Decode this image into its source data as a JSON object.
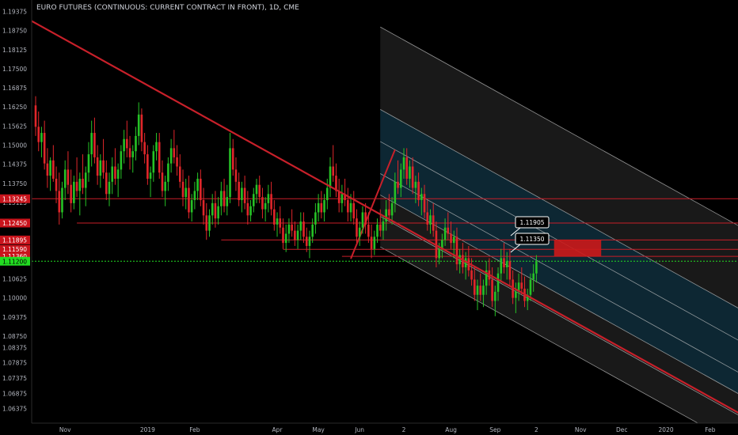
{
  "title": "EURO FUTURES (CONTINUOUS: CURRENT CONTRACT IN FRONT), 1D, CME",
  "colors": {
    "background": "#000000",
    "axis_text": "#b2b5be",
    "up_candle": "#26c226",
    "down_candle": "#e0262a",
    "trendline": "#c8202a",
    "level_line": "#c81e28",
    "channel_line": "#c8c8c8",
    "channel_fill": "#1c1c1c",
    "channel_inner": "#0a2a3a",
    "current_price": "#22dd22",
    "zone": "#cc1a1a"
  },
  "chart_data": {
    "type": "candlestick",
    "ylim": [
      1.059,
      1.1975
    ],
    "y_ticks": [
      "1.19375",
      "1.18750",
      "1.18125",
      "1.17500",
      "1.16875",
      "1.16250",
      "1.15625",
      "1.15000",
      "1.14375",
      "1.13750",
      "1.13125",
      "1.12500",
      "1.11875",
      "1.11250",
      "1.10625",
      "1.10000",
      "1.09375",
      "1.08750",
      "1.08375",
      "1.07875",
      "1.07375",
      "1.06875",
      "1.06375"
    ],
    "y_tick_values": [
      1.19375,
      1.1875,
      1.18125,
      1.175,
      1.16875,
      1.1625,
      1.15625,
      1.15,
      1.14375,
      1.1375,
      1.13125,
      1.125,
      1.11875,
      1.1125,
      1.10625,
      1.1,
      1.09375,
      1.0875,
      1.08375,
      1.07875,
      1.07375,
      1.06875,
      1.06375
    ],
    "x_ticks": [
      {
        "label": "Nov",
        "bar": 10
      },
      {
        "label": "2019",
        "bar": 38
      },
      {
        "label": "Feb",
        "bar": 54
      },
      {
        "label": "Apr",
        "bar": 82
      },
      {
        "label": "May",
        "bar": 96
      },
      {
        "label": "Jun",
        "bar": 110
      },
      {
        "label": "2",
        "bar": 125
      },
      {
        "label": "Aug",
        "bar": 141
      },
      {
        "label": "Sep",
        "bar": 156
      },
      {
        "label": "2",
        "bar": 170
      },
      {
        "label": "Nov",
        "bar": 185
      },
      {
        "label": "Dec",
        "bar": 199
      },
      {
        "label": "2020",
        "bar": 214
      },
      {
        "label": "Feb",
        "bar": 229
      }
    ],
    "candles": [
      [
        1.163,
        1.166,
        1.153,
        1.156
      ],
      [
        1.156,
        1.161,
        1.148,
        1.151
      ],
      [
        1.151,
        1.156,
        1.146,
        1.154
      ],
      [
        1.154,
        1.158,
        1.142,
        1.144
      ],
      [
        1.144,
        1.149,
        1.136,
        1.14
      ],
      [
        1.14,
        1.146,
        1.135,
        1.145
      ],
      [
        1.145,
        1.15,
        1.138,
        1.139
      ],
      [
        1.139,
        1.143,
        1.131,
        1.135
      ],
      [
        1.135,
        1.141,
        1.124,
        1.128
      ],
      [
        1.128,
        1.138,
        1.126,
        1.136
      ],
      [
        1.136,
        1.145,
        1.132,
        1.142
      ],
      [
        1.142,
        1.148,
        1.134,
        1.137
      ],
      [
        1.137,
        1.142,
        1.128,
        1.131
      ],
      [
        1.131,
        1.14,
        1.129,
        1.138
      ],
      [
        1.138,
        1.146,
        1.133,
        1.135
      ],
      [
        1.135,
        1.141,
        1.127,
        1.139
      ],
      [
        1.139,
        1.147,
        1.134,
        1.136
      ],
      [
        1.136,
        1.143,
        1.13,
        1.141
      ],
      [
        1.141,
        1.151,
        1.138,
        1.147
      ],
      [
        1.147,
        1.158,
        1.143,
        1.154
      ],
      [
        1.154,
        1.159,
        1.144,
        1.146
      ],
      [
        1.146,
        1.15,
        1.137,
        1.14
      ],
      [
        1.14,
        1.147,
        1.136,
        1.145
      ],
      [
        1.145,
        1.152,
        1.139,
        1.141
      ],
      [
        1.141,
        1.145,
        1.132,
        1.134
      ],
      [
        1.134,
        1.141,
        1.13,
        1.138
      ],
      [
        1.138,
        1.146,
        1.134,
        1.143
      ],
      [
        1.143,
        1.149,
        1.137,
        1.139
      ],
      [
        1.139,
        1.144,
        1.133,
        1.142
      ],
      [
        1.142,
        1.15,
        1.139,
        1.148
      ],
      [
        1.148,
        1.155,
        1.144,
        1.152
      ],
      [
        1.152,
        1.158,
        1.146,
        1.149
      ],
      [
        1.149,
        1.153,
        1.142,
        1.146
      ],
      [
        1.146,
        1.15,
        1.141,
        1.148
      ],
      [
        1.148,
        1.156,
        1.145,
        1.153
      ],
      [
        1.153,
        1.164,
        1.15,
        1.16
      ],
      [
        1.16,
        1.162,
        1.148,
        1.151
      ],
      [
        1.151,
        1.154,
        1.144,
        1.147
      ],
      [
        1.147,
        1.15,
        1.137,
        1.139
      ],
      [
        1.139,
        1.143,
        1.133,
        1.141
      ],
      [
        1.141,
        1.15,
        1.138,
        1.148
      ],
      [
        1.148,
        1.154,
        1.145,
        1.151
      ],
      [
        1.151,
        1.154,
        1.139,
        1.141
      ],
      [
        1.141,
        1.145,
        1.133,
        1.135
      ],
      [
        1.135,
        1.14,
        1.13,
        1.138
      ],
      [
        1.138,
        1.146,
        1.135,
        1.144
      ],
      [
        1.144,
        1.152,
        1.141,
        1.149
      ],
      [
        1.149,
        1.155,
        1.144,
        1.146
      ],
      [
        1.146,
        1.15,
        1.14,
        1.143
      ],
      [
        1.143,
        1.147,
        1.136,
        1.138
      ],
      [
        1.138,
        1.142,
        1.13,
        1.133
      ],
      [
        1.133,
        1.139,
        1.129,
        1.136
      ],
      [
        1.136,
        1.14,
        1.126,
        1.128
      ],
      [
        1.128,
        1.134,
        1.125,
        1.132
      ],
      [
        1.132,
        1.138,
        1.129,
        1.135
      ],
      [
        1.135,
        1.141,
        1.132,
        1.139
      ],
      [
        1.139,
        1.142,
        1.13,
        1.132
      ],
      [
        1.132,
        1.136,
        1.124,
        1.127
      ],
      [
        1.127,
        1.131,
        1.119,
        1.122
      ],
      [
        1.122,
        1.129,
        1.12,
        1.127
      ],
      [
        1.127,
        1.134,
        1.124,
        1.131
      ],
      [
        1.131,
        1.135,
        1.123,
        1.126
      ],
      [
        1.126,
        1.133,
        1.124,
        1.13
      ],
      [
        1.13,
        1.138,
        1.127,
        1.135
      ],
      [
        1.135,
        1.139,
        1.128,
        1.13
      ],
      [
        1.13,
        1.137,
        1.127,
        1.133
      ],
      [
        1.133,
        1.154,
        1.131,
        1.149
      ],
      [
        1.149,
        1.152,
        1.14,
        1.142
      ],
      [
        1.142,
        1.146,
        1.135,
        1.138
      ],
      [
        1.138,
        1.141,
        1.13,
        1.132
      ],
      [
        1.132,
        1.138,
        1.128,
        1.136
      ],
      [
        1.136,
        1.14,
        1.129,
        1.131
      ],
      [
        1.131,
        1.135,
        1.124,
        1.127
      ],
      [
        1.127,
        1.132,
        1.125,
        1.13
      ],
      [
        1.13,
        1.136,
        1.128,
        1.134
      ],
      [
        1.134,
        1.139,
        1.131,
        1.137
      ],
      [
        1.137,
        1.14,
        1.131,
        1.133
      ],
      [
        1.133,
        1.136,
        1.126,
        1.129
      ],
      [
        1.129,
        1.133,
        1.125,
        1.131
      ],
      [
        1.131,
        1.137,
        1.128,
        1.134
      ],
      [
        1.134,
        1.138,
        1.127,
        1.129
      ],
      [
        1.129,
        1.132,
        1.122,
        1.124
      ],
      [
        1.124,
        1.128,
        1.12,
        1.126
      ],
      [
        1.126,
        1.13,
        1.121,
        1.123
      ],
      [
        1.123,
        1.126,
        1.116,
        1.118
      ],
      [
        1.118,
        1.124,
        1.115,
        1.121
      ],
      [
        1.121,
        1.126,
        1.118,
        1.124
      ],
      [
        1.124,
        1.129,
        1.12,
        1.122
      ],
      [
        1.122,
        1.125,
        1.117,
        1.119
      ],
      [
        1.119,
        1.124,
        1.116,
        1.122
      ],
      [
        1.122,
        1.128,
        1.119,
        1.125
      ],
      [
        1.125,
        1.128,
        1.118,
        1.12
      ],
      [
        1.12,
        1.123,
        1.115,
        1.117
      ],
      [
        1.117,
        1.122,
        1.113,
        1.12
      ],
      [
        1.12,
        1.126,
        1.118,
        1.124
      ],
      [
        1.124,
        1.131,
        1.121,
        1.128
      ],
      [
        1.128,
        1.134,
        1.125,
        1.131
      ],
      [
        1.131,
        1.135,
        1.126,
        1.128
      ],
      [
        1.128,
        1.134,
        1.125,
        1.132
      ],
      [
        1.132,
        1.139,
        1.129,
        1.136
      ],
      [
        1.136,
        1.146,
        1.133,
        1.143
      ],
      [
        1.143,
        1.15,
        1.138,
        1.14
      ],
      [
        1.14,
        1.144,
        1.133,
        1.135
      ],
      [
        1.135,
        1.139,
        1.128,
        1.131
      ],
      [
        1.131,
        1.137,
        1.128,
        1.134
      ],
      [
        1.134,
        1.139,
        1.13,
        1.132
      ],
      [
        1.132,
        1.136,
        1.125,
        1.128
      ],
      [
        1.128,
        1.134,
        1.125,
        1.131
      ],
      [
        1.131,
        1.135,
        1.124,
        1.126
      ],
      [
        1.126,
        1.129,
        1.118,
        1.12
      ],
      [
        1.12,
        1.125,
        1.117,
        1.123
      ],
      [
        1.123,
        1.13,
        1.121,
        1.128
      ],
      [
        1.128,
        1.131,
        1.121,
        1.124
      ],
      [
        1.124,
        1.128,
        1.118,
        1.12
      ],
      [
        1.12,
        1.124,
        1.113,
        1.116
      ],
      [
        1.116,
        1.122,
        1.114,
        1.12
      ],
      [
        1.12,
        1.126,
        1.118,
        1.124
      ],
      [
        1.124,
        1.129,
        1.12,
        1.122
      ],
      [
        1.122,
        1.127,
        1.119,
        1.125
      ],
      [
        1.125,
        1.132,
        1.122,
        1.129
      ],
      [
        1.129,
        1.134,
        1.125,
        1.127
      ],
      [
        1.127,
        1.133,
        1.124,
        1.131
      ],
      [
        1.131,
        1.141,
        1.128,
        1.138
      ],
      [
        1.138,
        1.145,
        1.134,
        1.136
      ],
      [
        1.136,
        1.144,
        1.133,
        1.142
      ],
      [
        1.142,
        1.149,
        1.139,
        1.146
      ],
      [
        1.146,
        1.149,
        1.137,
        1.139
      ],
      [
        1.139,
        1.145,
        1.136,
        1.143
      ],
      [
        1.143,
        1.146,
        1.134,
        1.136
      ],
      [
        1.136,
        1.14,
        1.131,
        1.138
      ],
      [
        1.138,
        1.141,
        1.13,
        1.132
      ],
      [
        1.132,
        1.136,
        1.127,
        1.134
      ],
      [
        1.134,
        1.137,
        1.126,
        1.128
      ],
      [
        1.128,
        1.132,
        1.122,
        1.124
      ],
      [
        1.124,
        1.129,
        1.121,
        1.127
      ],
      [
        1.127,
        1.131,
        1.12,
        1.122
      ],
      [
        1.122,
        1.125,
        1.11,
        1.113
      ],
      [
        1.113,
        1.118,
        1.111,
        1.116
      ],
      [
        1.116,
        1.121,
        1.113,
        1.119
      ],
      [
        1.119,
        1.126,
        1.117,
        1.123
      ],
      [
        1.123,
        1.128,
        1.119,
        1.121
      ],
      [
        1.121,
        1.125,
        1.116,
        1.118
      ],
      [
        1.118,
        1.122,
        1.113,
        1.12
      ],
      [
        1.12,
        1.123,
        1.109,
        1.111
      ],
      [
        1.111,
        1.116,
        1.108,
        1.114
      ],
      [
        1.114,
        1.118,
        1.108,
        1.11
      ],
      [
        1.11,
        1.115,
        1.106,
        1.113
      ],
      [
        1.113,
        1.117,
        1.107,
        1.109
      ],
      [
        1.109,
        1.113,
        1.104,
        1.106
      ],
      [
        1.106,
        1.11,
        1.099,
        1.101
      ],
      [
        1.101,
        1.106,
        1.096,
        1.104
      ],
      [
        1.104,
        1.108,
        1.099,
        1.101
      ],
      [
        1.101,
        1.106,
        1.097,
        1.104
      ],
      [
        1.104,
        1.112,
        1.101,
        1.109
      ],
      [
        1.109,
        1.113,
        1.104,
        1.106
      ],
      [
        1.106,
        1.11,
        1.097,
        1.099
      ],
      [
        1.099,
        1.104,
        1.094,
        1.102
      ],
      [
        1.102,
        1.11,
        1.099,
        1.108
      ],
      [
        1.108,
        1.116,
        1.105,
        1.113
      ],
      [
        1.113,
        1.118,
        1.108,
        1.11
      ],
      [
        1.11,
        1.115,
        1.106,
        1.112
      ],
      [
        1.112,
        1.116,
        1.104,
        1.106
      ],
      [
        1.106,
        1.109,
        1.098,
        1.1
      ],
      [
        1.1,
        1.105,
        1.095,
        1.102
      ],
      [
        1.102,
        1.108,
        1.099,
        1.105
      ],
      [
        1.105,
        1.11,
        1.101,
        1.103
      ],
      [
        1.103,
        1.107,
        1.097,
        1.099
      ],
      [
        1.099,
        1.103,
        1.096,
        1.101
      ],
      [
        1.101,
        1.108,
        1.099,
        1.106
      ],
      [
        1.106,
        1.111,
        1.102,
        1.108
      ],
      [
        1.108,
        1.114,
        1.105,
        1.112
      ]
    ],
    "trendlines": [
      {
        "name": "main-trendline",
        "from": [
          -3,
          1.1915
        ],
        "to": [
          244,
          1.0595
        ]
      }
    ],
    "horizontal_levels": [
      {
        "value": 1.13245,
        "label": "1.13245",
        "from_bar": -3
      },
      {
        "value": 1.1245,
        "label": "1.12450",
        "from_bar": 14
      },
      {
        "value": 1.11895,
        "label": "1.11895",
        "from_bar": 63
      },
      {
        "value": 1.1159,
        "label": "1.11590",
        "from_bar": 84
      },
      {
        "value": 1.1136,
        "label": "1.11360",
        "from_bar": 104
      }
    ],
    "current_price": {
      "value": 1.112,
      "label": "1.11200"
    },
    "zone": {
      "from_bar": 176,
      "to_bar": 192,
      "top": 1.11905,
      "bottom": 1.1135
    },
    "zone_callouts": [
      "1.11905",
      "1.11350"
    ],
    "pitchfork": {
      "anchor_bar": 107,
      "anchor_price": 1.1128,
      "pivot_bar": 122,
      "pivot_price": 1.1485,
      "slope_per_bar": -0.000535,
      "offsets": [
        0.0105,
        0,
        -0.0105,
        -0.0175,
        -0.0245
      ],
      "outer": [
        0.0375,
        -0.0345
      ],
      "end_bar": 244
    }
  }
}
